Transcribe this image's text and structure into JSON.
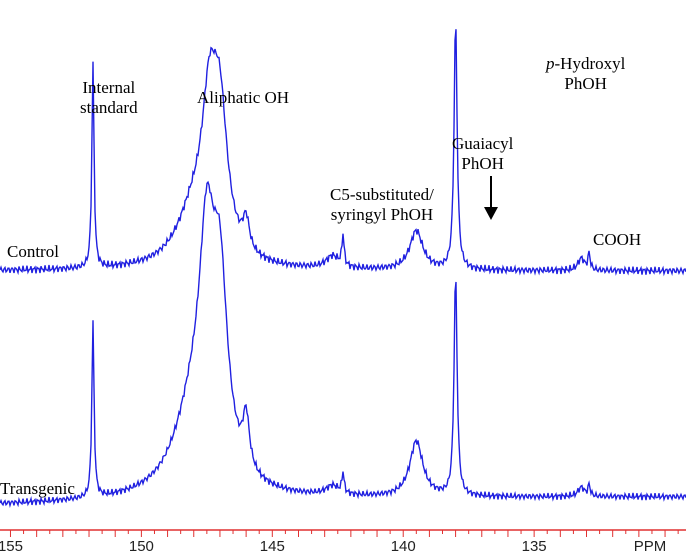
{
  "chart_data": {
    "type": "line",
    "title": "",
    "xlabel": "PPM",
    "ylabel": "",
    "x_axis": {
      "reversed": true,
      "range": [
        155.4,
        129.2
      ],
      "ticks": [
        {
          "value": 155,
          "label": "155"
        },
        {
          "value": 150,
          "label": "150"
        },
        {
          "value": 145,
          "label": "145"
        },
        {
          "value": 140,
          "label": "140"
        },
        {
          "value": 135,
          "label": "135"
        }
      ],
      "color": "#e03030"
    },
    "series_color": "#2020e0",
    "series": [
      {
        "name": "Control",
        "peaks": [
          {
            "ppm": 151.85,
            "height": 1.0,
            "width": 0.05
          },
          {
            "ppm": 147.4,
            "height": 0.62,
            "width": 0.35
          },
          {
            "ppm": 147.0,
            "height": 0.63,
            "width": 0.35
          },
          {
            "ppm": 148.0,
            "height": 0.25,
            "width": 0.8
          },
          {
            "ppm": 146.0,
            "height": 0.15,
            "width": 0.15
          },
          {
            "ppm": 142.3,
            "height": 0.15,
            "width": 0.05
          },
          {
            "ppm": 142.7,
            "height": 0.06,
            "width": 0.3
          },
          {
            "ppm": 139.5,
            "height": 0.19,
            "width": 0.3
          },
          {
            "ppm": 138.0,
            "height": 1.22,
            "width": 0.07
          },
          {
            "ppm": 133.2,
            "height": 0.06,
            "width": 0.15
          },
          {
            "ppm": 132.9,
            "height": 0.08,
            "width": 0.05
          }
        ]
      },
      {
        "name": "Transgenic",
        "peaks": [
          {
            "ppm": 151.85,
            "height": 0.95,
            "width": 0.05
          },
          {
            "ppm": 147.5,
            "height": 1.05,
            "width": 0.35
          },
          {
            "ppm": 147.0,
            "height": 0.95,
            "width": 0.35
          },
          {
            "ppm": 148.0,
            "height": 0.45,
            "width": 0.9
          },
          {
            "ppm": 146.0,
            "height": 0.28,
            "width": 0.15
          },
          {
            "ppm": 142.3,
            "height": 0.11,
            "width": 0.05
          },
          {
            "ppm": 142.7,
            "height": 0.05,
            "width": 0.3
          },
          {
            "ppm": 139.5,
            "height": 0.3,
            "width": 0.3
          },
          {
            "ppm": 138.0,
            "height": 1.2,
            "width": 0.07
          },
          {
            "ppm": 133.2,
            "height": 0.05,
            "width": 0.15
          },
          {
            "ppm": 132.9,
            "height": 0.06,
            "width": 0.05
          }
        ]
      }
    ],
    "annotations": {
      "internal_standard": [
        "Internal",
        "standard"
      ],
      "aliphatic": "Aliphatic OH",
      "c5": [
        "C5-substituted/",
        "syringyl PhOH"
      ],
      "guaiacyl": [
        "Guaiacyl",
        "PhOH"
      ],
      "p_hydroxyl_italic": "p",
      "p_hydroxyl_rest": "-Hydroxyl",
      "p_hydroxyl_line2": "PhOH",
      "cooh": "COOH",
      "control": "Control",
      "transgenic": "Transgenic"
    }
  }
}
